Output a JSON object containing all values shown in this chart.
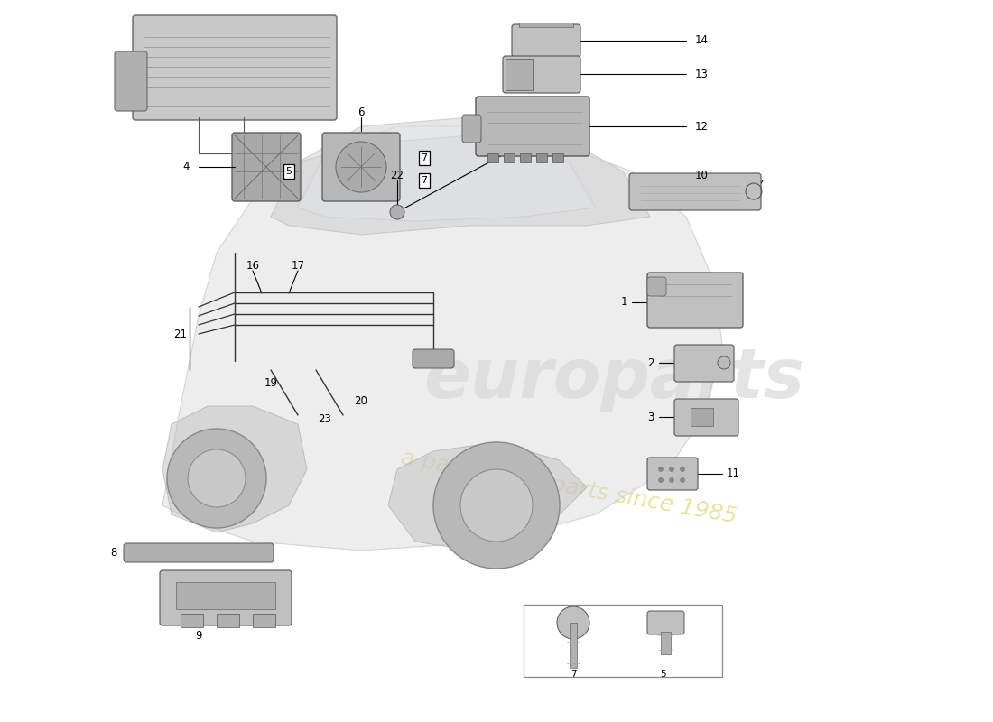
{
  "bg": "#ffffff",
  "pf": "#c0c0c0",
  "pe": "#555555",
  "lc": "#000000",
  "wm_main": "europarts",
  "wm_sub": "a passion for parts since 1985",
  "figsize": [
    11.0,
    8.0
  ],
  "dpi": 100
}
